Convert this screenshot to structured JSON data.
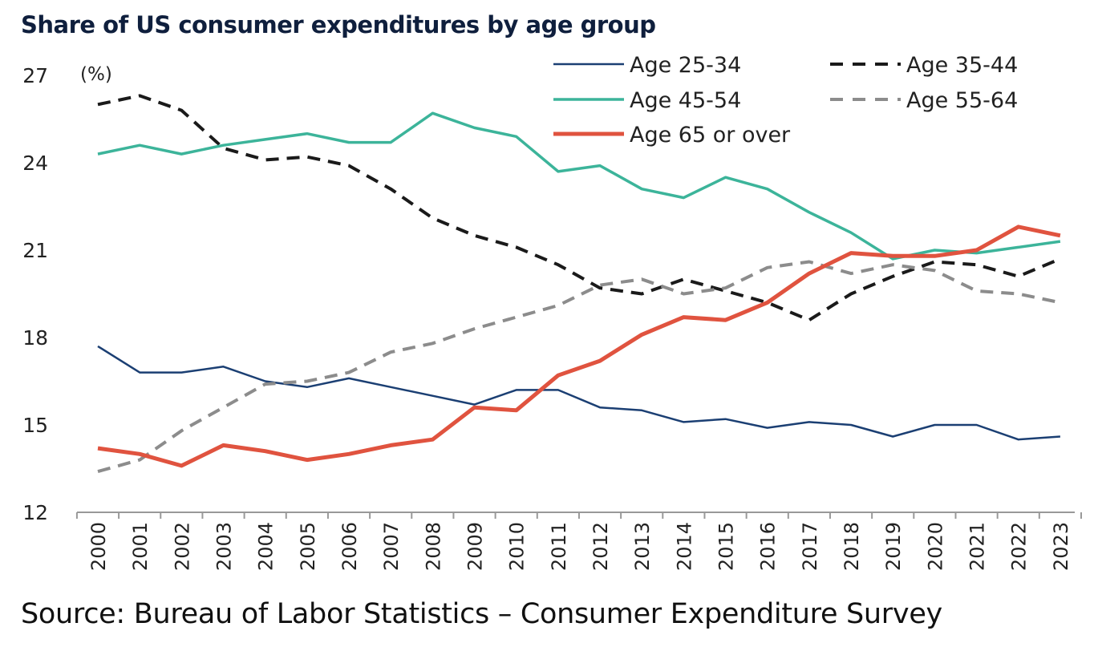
{
  "chart_data": {
    "type": "line",
    "title": "Share of US consumer expenditures by age group",
    "ylabel": "(%)",
    "xlabel": "",
    "ylim": [
      12,
      27
    ],
    "yticks": [
      12,
      15,
      18,
      21,
      24,
      27
    ],
    "x": [
      "2000",
      "2001",
      "2002",
      "2003",
      "2004",
      "2005",
      "2006",
      "2007",
      "2008",
      "2009",
      "2010",
      "2011",
      "2012",
      "2013",
      "2014",
      "2015",
      "2016",
      "2017",
      "2018",
      "2019",
      "2020",
      "2021",
      "2022",
      "2023"
    ],
    "legend_position": "top-right",
    "grid": false,
    "series": [
      {
        "name": "Age 25-34",
        "color": "#1b3f73",
        "style": "solid",
        "width": 2.5,
        "values": [
          17.7,
          16.8,
          16.8,
          17.0,
          16.5,
          16.3,
          16.6,
          16.3,
          16.0,
          15.7,
          16.2,
          16.2,
          15.6,
          15.5,
          15.1,
          15.2,
          14.9,
          15.1,
          15.0,
          14.6,
          15.0,
          15.0,
          14.5,
          14.6
        ]
      },
      {
        "name": "Age 35-44",
        "color": "#1a1a1a",
        "style": "dashed",
        "width": 4,
        "values": [
          26.0,
          26.3,
          25.8,
          24.5,
          24.1,
          24.2,
          23.9,
          23.1,
          22.1,
          21.5,
          21.1,
          20.5,
          19.7,
          19.5,
          20.0,
          19.6,
          19.2,
          18.6,
          19.5,
          20.1,
          20.6,
          20.5,
          20.1,
          20.7
        ]
      },
      {
        "name": "Age 45-54",
        "color": "#3cb49a",
        "style": "solid",
        "width": 3.5,
        "values": [
          24.3,
          24.6,
          24.3,
          24.6,
          24.8,
          25.0,
          24.7,
          24.7,
          25.7,
          25.2,
          24.9,
          23.7,
          23.9,
          23.1,
          22.8,
          23.5,
          23.1,
          22.3,
          21.6,
          20.7,
          21.0,
          20.9,
          21.1,
          21.3
        ]
      },
      {
        "name": "Age 55-64",
        "color": "#8c8c8c",
        "style": "dashed",
        "width": 4,
        "values": [
          13.4,
          13.8,
          14.8,
          15.6,
          16.4,
          16.5,
          16.8,
          17.5,
          17.8,
          18.3,
          18.7,
          19.1,
          19.8,
          20.0,
          19.5,
          19.7,
          20.4,
          20.6,
          20.2,
          20.5,
          20.3,
          19.6,
          19.5,
          19.2
        ]
      },
      {
        "name": "Age 65 or over",
        "color": "#e0533f",
        "style": "solid",
        "width": 5,
        "values": [
          14.2,
          14.0,
          13.6,
          14.3,
          14.1,
          13.8,
          14.0,
          14.3,
          14.5,
          15.6,
          15.5,
          16.7,
          17.2,
          18.1,
          18.7,
          18.6,
          19.2,
          20.2,
          20.9,
          20.8,
          20.8,
          21.0,
          21.8,
          21.5
        ]
      }
    ]
  },
  "source": "Source: Bureau of Labor Statistics – Consumer Expenditure Survey"
}
